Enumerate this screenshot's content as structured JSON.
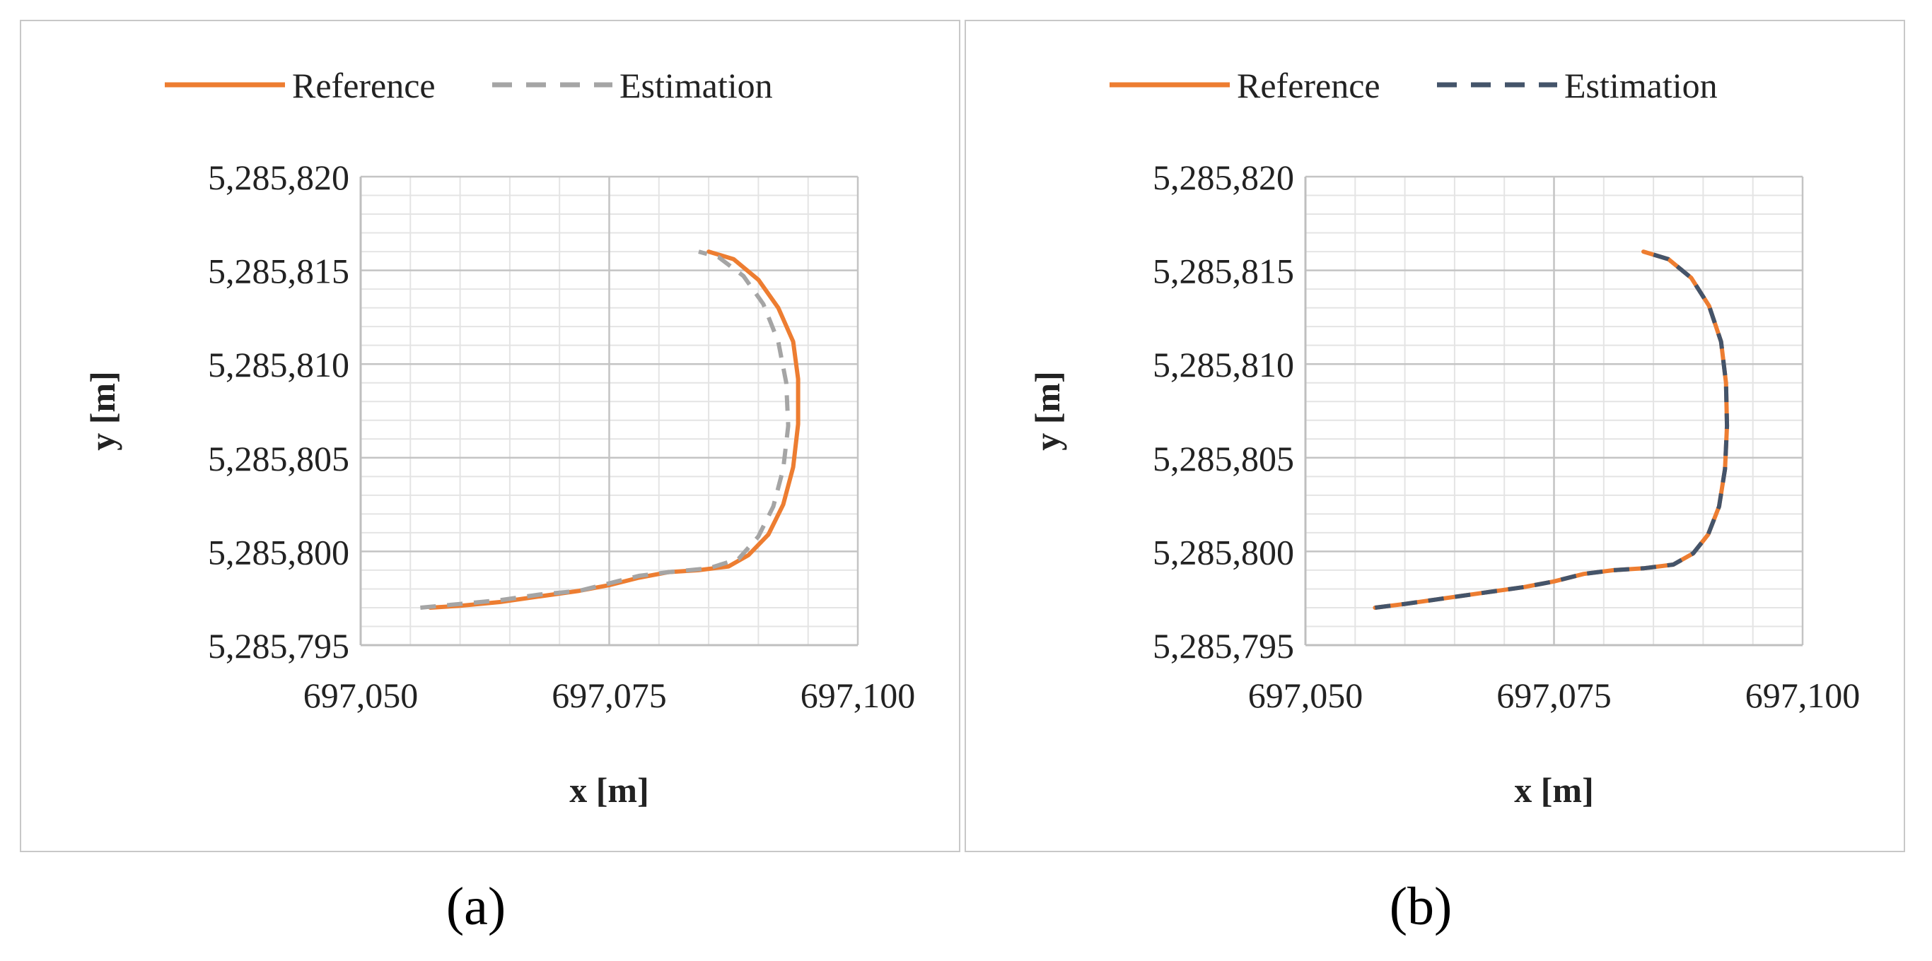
{
  "chart_data": [
    {
      "type": "line",
      "panel_label": "(a)",
      "xlabel": "x [m]",
      "ylabel": "y [m]",
      "xlim": [
        697050,
        697100
      ],
      "ylim": [
        5285795,
        5285820
      ],
      "xticks": [
        697050,
        697075,
        697100
      ],
      "xtick_labels": [
        "697,050",
        "697,075",
        "697,100"
      ],
      "yticks": [
        5285795,
        5285800,
        5285805,
        5285810,
        5285815,
        5285820
      ],
      "ytick_labels": [
        "5,285,795",
        "5,285,800",
        "5,285,805",
        "5,285,810",
        "5,285,815",
        "5,285,820"
      ],
      "grid": true,
      "legend_position": "top",
      "series": [
        {
          "name": "Reference",
          "style": "solid",
          "color": "#ED7D31",
          "x": [
            697057,
            697060,
            697064,
            697068,
            697072,
            697075,
            697078,
            697081,
            697084,
            697087,
            697089,
            697091,
            697092.5,
            697093.5,
            697094,
            697094,
            697093.5,
            697092,
            697090,
            697087.5,
            697085
          ],
          "y": [
            5285797.0,
            5285797.1,
            5285797.3,
            5285797.6,
            5285797.9,
            5285798.2,
            5285798.6,
            5285798.9,
            5285799.0,
            5285799.2,
            5285799.8,
            5285800.9,
            5285802.5,
            5285804.5,
            5285806.8,
            5285809.2,
            5285811.2,
            5285813.0,
            5285814.5,
            5285815.6,
            5285816.0
          ]
        },
        {
          "name": "Estimation",
          "style": "dashed",
          "color": "#A5A5A5",
          "x": [
            697056,
            697060,
            697064,
            697068,
            697072,
            697075,
            697078,
            697081,
            697085,
            697088,
            697090,
            697091.5,
            697092.5,
            697093,
            697092.8,
            697092,
            697090.5,
            697088.5,
            697086,
            697084
          ],
          "y": [
            5285797.0,
            5285797.2,
            5285797.4,
            5285797.7,
            5285797.9,
            5285798.3,
            5285798.7,
            5285798.9,
            5285799.1,
            5285799.6,
            5285800.8,
            5285802.4,
            5285804.4,
            5285806.7,
            5285809.0,
            5285811.2,
            5285813.2,
            5285814.7,
            5285815.7,
            5285816.0
          ]
        }
      ]
    },
    {
      "type": "line",
      "panel_label": "(b)",
      "xlabel": "x [m]",
      "ylabel": "y [m]",
      "xlim": [
        697050,
        697100
      ],
      "ylim": [
        5285795,
        5285820
      ],
      "xticks": [
        697050,
        697075,
        697100
      ],
      "xtick_labels": [
        "697,050",
        "697,075",
        "697,100"
      ],
      "yticks": [
        5285795,
        5285800,
        5285805,
        5285810,
        5285815,
        5285820
      ],
      "ytick_labels": [
        "5,285,795",
        "5,285,800",
        "5,285,805",
        "5,285,810",
        "5,285,815",
        "5,285,820"
      ],
      "grid": true,
      "legend_position": "top",
      "series": [
        {
          "name": "Reference",
          "style": "solid",
          "color": "#ED7D31",
          "x": [
            697057,
            697060,
            697064,
            697068,
            697072,
            697075,
            697078,
            697081,
            697084,
            697087,
            697089,
            697090.5,
            697091.6,
            697092.2,
            697092.4,
            697092.3,
            697091.8,
            697090.6,
            697088.8,
            697086.5,
            697084
          ],
          "y": [
            5285797.0,
            5285797.2,
            5285797.5,
            5285797.8,
            5285798.1,
            5285798.4,
            5285798.8,
            5285799.0,
            5285799.1,
            5285799.3,
            5285799.9,
            5285800.9,
            5285802.4,
            5285804.4,
            5285806.7,
            5285809.0,
            5285811.2,
            5285813.1,
            5285814.6,
            5285815.6,
            5285816.0
          ]
        },
        {
          "name": "Estimation",
          "style": "dashed",
          "color": "#44546A",
          "x": [
            697057,
            697060,
            697064,
            697068,
            697072,
            697075,
            697078,
            697081,
            697084,
            697087,
            697089,
            697090.5,
            697091.6,
            697092.2,
            697092.4,
            697092.3,
            697091.8,
            697090.6,
            697088.8,
            697086.5,
            697084
          ],
          "y": [
            5285797.0,
            5285797.2,
            5285797.5,
            5285797.8,
            5285798.1,
            5285798.4,
            5285798.8,
            5285799.0,
            5285799.1,
            5285799.3,
            5285799.9,
            5285800.9,
            5285802.4,
            5285804.4,
            5285806.7,
            5285809.0,
            5285811.2,
            5285813.1,
            5285814.6,
            5285815.6,
            5285816.0
          ]
        }
      ]
    }
  ]
}
